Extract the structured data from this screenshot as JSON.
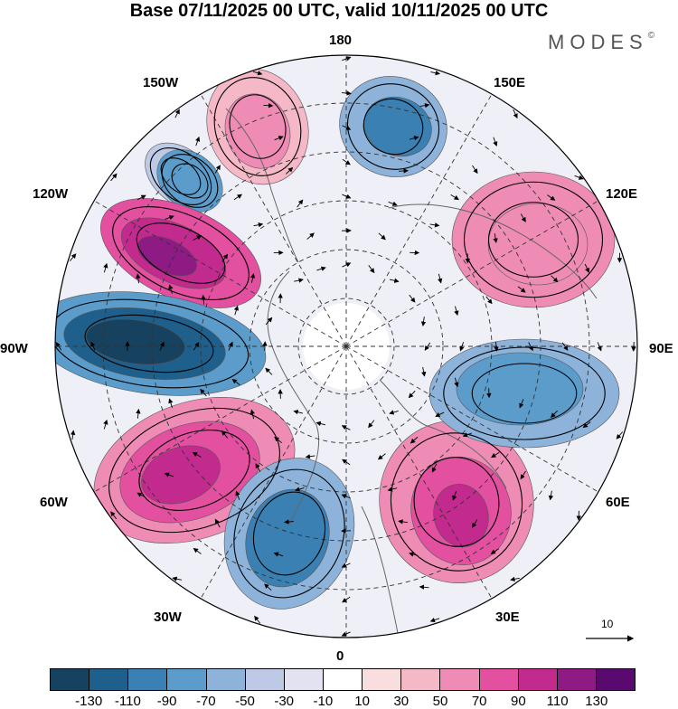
{
  "title": "Base 07/11/2025 00 UTC, valid 10/11/2025 00 UTC",
  "brand": "MODES",
  "brand_mark": "©",
  "longitude_labels": {
    "n180": "180",
    "w150": "150W",
    "e150": "150E",
    "w120": "120W",
    "e120": "120E",
    "w90": "90W",
    "e90": "90E",
    "w60": "60W",
    "e60": "60E",
    "w30": "30W",
    "e30": "30E",
    "s0": "0"
  },
  "reference_vector": "10",
  "colorbar": {
    "colors": [
      "#16415f",
      "#1e5f8c",
      "#3a80b3",
      "#5b9ccb",
      "#8db3da",
      "#bdc9e5",
      "#e2e2f2",
      "#ffffff",
      "#f8dedf",
      "#f5b8c6",
      "#ee8cb5",
      "#e3509f",
      "#c22a8d",
      "#8e1a84",
      "#5a0a6f"
    ],
    "tick_labels": [
      "-130",
      "-110",
      "-90",
      "-70",
      "-50",
      "-30",
      "-10",
      "10",
      "30",
      "50",
      "70",
      "90",
      "110",
      "130"
    ]
  },
  "anomaly_centers": [
    {
      "name": "negative-anomaly-150W-north",
      "value": -60
    },
    {
      "name": "positive-anomaly-160W",
      "value": 60
    },
    {
      "name": "negative-anomaly-160E",
      "value": -90
    },
    {
      "name": "negative-anomaly-140W",
      "value": -70
    },
    {
      "name": "positive-anomaly-120W",
      "value": 120
    },
    {
      "name": "negative-anomaly-90W",
      "value": -140
    },
    {
      "name": "positive-anomaly-60W",
      "value": 110
    },
    {
      "name": "negative-anomaly-20W",
      "value": -90
    },
    {
      "name": "positive-anomaly-30E",
      "value": 110
    },
    {
      "name": "negative-anomaly-90E",
      "value": -80
    },
    {
      "name": "positive-anomaly-120E",
      "value": 70
    }
  ]
}
